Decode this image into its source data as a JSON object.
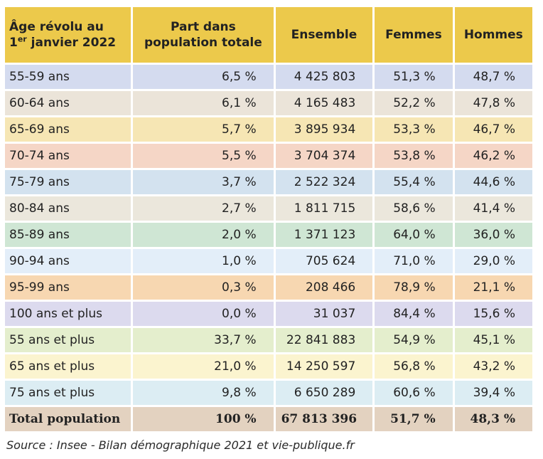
{
  "header": {
    "col_age_line1": "Âge révolu au",
    "col_age_line2_prefix": "1",
    "col_age_line2_sup": "er",
    "col_age_line2_suffix": " janvier 2022",
    "col_part_line1": "Part dans",
    "col_part_line2": "population totale",
    "col_ensemble": "Ensemble",
    "col_femmes": "Femmes",
    "col_hommes": "Hommes"
  },
  "rows": [
    {
      "age": "55-59 ans",
      "part": "6,5 %",
      "ensemble": "4 425 803",
      "femmes": "51,3 %",
      "hommes": "48,7 %",
      "color": "#d4dbef"
    },
    {
      "age": "60-64 ans",
      "part": "6,1 %",
      "ensemble": "4 165 483",
      "femmes": "52,2 %",
      "hommes": "47,8 %",
      "color": "#ebe4d9"
    },
    {
      "age": "65-69 ans",
      "part": "5,7 %",
      "ensemble": "3 895 934",
      "femmes": "53,3 %",
      "hommes": "46,7 %",
      "color": "#f6e6b4"
    },
    {
      "age": "70-74 ans",
      "part": "5,5 %",
      "ensemble": "3 704 374",
      "femmes": "53,8 %",
      "hommes": "46,2 %",
      "color": "#f5d6c6"
    },
    {
      "age": "75-79 ans",
      "part": "3,7 %",
      "ensemble": "2 522 324",
      "femmes": "55,4 %",
      "hommes": "44,6 %",
      "color": "#d3e2ef"
    },
    {
      "age": "80-84 ans",
      "part": "2,7 %",
      "ensemble": "1 811 715",
      "femmes": "58,6 %",
      "hommes": "41,4 %",
      "color": "#ebe7dc"
    },
    {
      "age": "85-89 ans",
      "part": "2,0 %",
      "ensemble": "1 371 123",
      "femmes": "64,0 %",
      "hommes": "36,0 %",
      "color": "#cfe6d4"
    },
    {
      "age": "90-94 ans",
      "part": "1,0 %",
      "ensemble": "705 624",
      "femmes": "71,0 %",
      "hommes": "29,0 %",
      "color": "#e3eef9"
    },
    {
      "age": "95-99 ans",
      "part": "0,3 %",
      "ensemble": "208 466",
      "femmes": "78,9 %",
      "hommes": "21,1 %",
      "color": "#f7d7b1"
    },
    {
      "age": "100 ans et plus",
      "part": "0,0 %",
      "ensemble": "31 037",
      "femmes": "84,4 %",
      "hommes": "15,6 %",
      "color": "#dcdaee"
    },
    {
      "age": "55 ans et plus",
      "part": "33,7 %",
      "ensemble": "22 841 883",
      "femmes": "54,9 %",
      "hommes": "45,1 %",
      "color": "#e4eecd"
    },
    {
      "age": "65 ans et plus",
      "part": "21,0 %",
      "ensemble": "14 250 597",
      "femmes": "56,8 %",
      "hommes": "43,2 %",
      "color": "#fbf4cf"
    },
    {
      "age": "75 ans et plus",
      "part": "9,8 %",
      "ensemble": "6 650 289",
      "femmes": "60,6 %",
      "hommes": "39,4 %",
      "color": "#dcedf3"
    }
  ],
  "total": {
    "age": "Total population",
    "part": "100 %",
    "ensemble": "67 813 396",
    "femmes": "51,7 %",
    "hommes": "48,3 %",
    "color": "#e3d2c0"
  },
  "source": "Source : Insee - Bilan démographique 2021 et vie-publique.fr",
  "header_color": "#ecc94b"
}
